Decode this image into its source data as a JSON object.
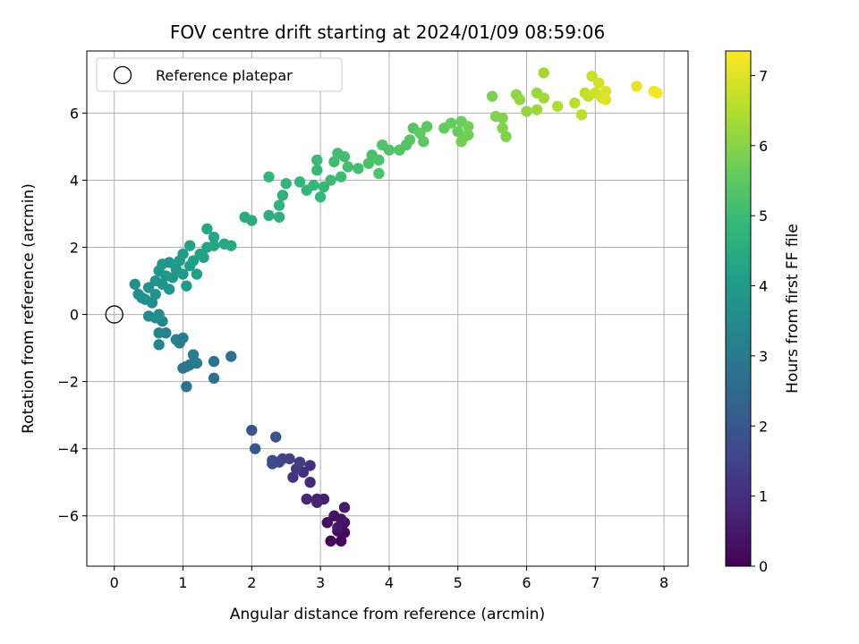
{
  "chart_data": {
    "type": "scatter",
    "title": "FOV centre drift starting at 2024/01/09 08:59:06",
    "xlabel": "Angular distance from reference (arcmin)",
    "ylabel": "Rotation from reference (arcmin)",
    "xlim": [
      -0.4,
      8.35
    ],
    "ylim": [
      -7.5,
      7.85
    ],
    "x_ticks": [
      0,
      1,
      2,
      3,
      4,
      5,
      6,
      7,
      8
    ],
    "y_ticks": [
      -6,
      -4,
      -2,
      0,
      2,
      4,
      6
    ],
    "x_tick_labels": [
      "0",
      "1",
      "2",
      "3",
      "4",
      "5",
      "6",
      "7",
      "8"
    ],
    "y_tick_labels": [
      "−6",
      "−4",
      "−2",
      "0",
      "2",
      "4",
      "6"
    ],
    "grid": true,
    "legend": {
      "placement": "top-left",
      "entries": [
        "Reference platepar"
      ]
    },
    "reference_point": {
      "x": 0,
      "y": 0,
      "label": "Reference platepar"
    },
    "colorbar": {
      "label": "Hours from first FF file",
      "colormap": "viridis",
      "range": [
        0,
        7.35
      ],
      "ticks": [
        0,
        1,
        2,
        3,
        4,
        5,
        6,
        7
      ],
      "tick_labels": [
        "0",
        "1",
        "2",
        "3",
        "4",
        "5",
        "6",
        "7"
      ],
      "colors": [
        "#440154",
        "#482878",
        "#3e4989",
        "#31688e",
        "#26828e",
        "#1f9e89",
        "#35b779",
        "#6ece58",
        "#b5de2b",
        "#fde725"
      ]
    },
    "points": [
      {
        "x": 3.3,
        "y": -6.75,
        "h": 0.05
      },
      {
        "x": 3.15,
        "y": -6.75,
        "h": 0.1
      },
      {
        "x": 3.35,
        "y": -6.5,
        "h": 0.15
      },
      {
        "x": 3.25,
        "y": -6.45,
        "h": 0.2
      },
      {
        "x": 3.35,
        "y": -6.2,
        "h": 0.25
      },
      {
        "x": 3.1,
        "y": -6.2,
        "h": 0.3
      },
      {
        "x": 3.2,
        "y": -6.0,
        "h": 0.35
      },
      {
        "x": 3.3,
        "y": -6.1,
        "h": 0.4
      },
      {
        "x": 3.25,
        "y": -6.35,
        "h": 0.45
      },
      {
        "x": 3.35,
        "y": -5.75,
        "h": 0.55
      },
      {
        "x": 3.05,
        "y": -5.5,
        "h": 0.65
      },
      {
        "x": 2.95,
        "y": -5.5,
        "h": 0.7
      },
      {
        "x": 2.95,
        "y": -5.6,
        "h": 0.75
      },
      {
        "x": 2.8,
        "y": -5.5,
        "h": 0.8
      },
      {
        "x": 2.85,
        "y": -5.0,
        "h": 0.9
      },
      {
        "x": 2.85,
        "y": -4.5,
        "h": 1.0
      },
      {
        "x": 2.75,
        "y": -4.7,
        "h": 1.05
      },
      {
        "x": 2.6,
        "y": -4.85,
        "h": 1.1
      },
      {
        "x": 2.65,
        "y": -4.6,
        "h": 1.2
      },
      {
        "x": 2.7,
        "y": -4.4,
        "h": 1.3
      },
      {
        "x": 2.55,
        "y": -4.3,
        "h": 1.4
      },
      {
        "x": 2.45,
        "y": -4.3,
        "h": 1.5
      },
      {
        "x": 2.4,
        "y": -4.4,
        "h": 1.55
      },
      {
        "x": 2.3,
        "y": -4.35,
        "h": 1.65
      },
      {
        "x": 2.3,
        "y": -4.45,
        "h": 1.7
      },
      {
        "x": 2.35,
        "y": -3.65,
        "h": 1.85
      },
      {
        "x": 2.0,
        "y": -3.45,
        "h": 1.95
      },
      {
        "x": 2.05,
        "y": -4.0,
        "h": 2.0
      },
      {
        "x": 1.7,
        "y": -1.25,
        "h": 2.65
      },
      {
        "x": 1.45,
        "y": -1.9,
        "h": 2.7
      },
      {
        "x": 1.45,
        "y": -1.4,
        "h": 2.75
      },
      {
        "x": 1.05,
        "y": -2.15,
        "h": 2.8
      },
      {
        "x": 1.0,
        "y": -1.6,
        "h": 2.85
      },
      {
        "x": 1.05,
        "y": -1.55,
        "h": 2.9
      },
      {
        "x": 1.1,
        "y": -1.5,
        "h": 2.95
      },
      {
        "x": 1.2,
        "y": -1.45,
        "h": 3.0
      },
      {
        "x": 1.15,
        "y": -1.2,
        "h": 3.05
      },
      {
        "x": 0.95,
        "y": -0.85,
        "h": 3.1
      },
      {
        "x": 1.0,
        "y": -0.7,
        "h": 3.15
      },
      {
        "x": 0.9,
        "y": -0.75,
        "h": 3.2
      },
      {
        "x": 0.75,
        "y": -0.55,
        "h": 3.25
      },
      {
        "x": 0.65,
        "y": -0.9,
        "h": 3.3
      },
      {
        "x": 0.65,
        "y": -0.55,
        "h": 3.35
      },
      {
        "x": 0.7,
        "y": -0.2,
        "h": 3.4
      },
      {
        "x": 0.6,
        "y": -0.1,
        "h": 3.45
      },
      {
        "x": 0.5,
        "y": -0.05,
        "h": 3.5
      },
      {
        "x": 0.65,
        "y": 0.0,
        "h": 3.55
      },
      {
        "x": 0.55,
        "y": 0.35,
        "h": 3.6
      },
      {
        "x": 0.4,
        "y": 0.5,
        "h": 3.6
      },
      {
        "x": 0.3,
        "y": 0.9,
        "h": 3.65
      },
      {
        "x": 0.35,
        "y": 0.6,
        "h": 3.65
      },
      {
        "x": 0.45,
        "y": 0.45,
        "h": 3.7
      },
      {
        "x": 0.5,
        "y": 0.8,
        "h": 3.7
      },
      {
        "x": 0.6,
        "y": 0.6,
        "h": 3.75
      },
      {
        "x": 0.7,
        "y": 0.9,
        "h": 3.75
      },
      {
        "x": 0.6,
        "y": 1.0,
        "h": 3.8
      },
      {
        "x": 0.8,
        "y": 0.75,
        "h": 3.8
      },
      {
        "x": 0.75,
        "y": 1.15,
        "h": 3.85
      },
      {
        "x": 0.65,
        "y": 1.3,
        "h": 3.85
      },
      {
        "x": 0.85,
        "y": 1.1,
        "h": 3.9
      },
      {
        "x": 0.9,
        "y": 1.35,
        "h": 3.9
      },
      {
        "x": 0.7,
        "y": 1.5,
        "h": 3.95
      },
      {
        "x": 0.8,
        "y": 1.55,
        "h": 3.95
      },
      {
        "x": 1.0,
        "y": 1.2,
        "h": 4.0
      },
      {
        "x": 0.95,
        "y": 1.6,
        "h": 4.0
      },
      {
        "x": 1.05,
        "y": 0.85,
        "h": 4.05
      },
      {
        "x": 1.1,
        "y": 1.45,
        "h": 4.05
      },
      {
        "x": 1.0,
        "y": 1.8,
        "h": 4.1
      },
      {
        "x": 1.15,
        "y": 1.6,
        "h": 4.1
      },
      {
        "x": 1.2,
        "y": 1.2,
        "h": 4.15
      },
      {
        "x": 1.25,
        "y": 1.8,
        "h": 4.15
      },
      {
        "x": 1.1,
        "y": 2.05,
        "h": 4.2
      },
      {
        "x": 1.3,
        "y": 1.7,
        "h": 4.2
      },
      {
        "x": 1.35,
        "y": 2.0,
        "h": 4.25
      },
      {
        "x": 1.45,
        "y": 2.05,
        "h": 4.3
      },
      {
        "x": 1.35,
        "y": 2.55,
        "h": 4.35
      },
      {
        "x": 1.45,
        "y": 2.3,
        "h": 4.35
      },
      {
        "x": 1.6,
        "y": 2.1,
        "h": 4.4
      },
      {
        "x": 1.7,
        "y": 2.05,
        "h": 4.45
      },
      {
        "x": 1.9,
        "y": 2.9,
        "h": 4.5
      },
      {
        "x": 2.0,
        "y": 2.8,
        "h": 4.55
      },
      {
        "x": 2.25,
        "y": 2.95,
        "h": 4.6
      },
      {
        "x": 2.4,
        "y": 2.9,
        "h": 4.65
      },
      {
        "x": 2.4,
        "y": 3.25,
        "h": 4.7
      },
      {
        "x": 2.45,
        "y": 3.55,
        "h": 4.75
      },
      {
        "x": 2.25,
        "y": 4.1,
        "h": 4.8
      },
      {
        "x": 2.5,
        "y": 3.9,
        "h": 4.8
      },
      {
        "x": 2.7,
        "y": 3.95,
        "h": 4.85
      },
      {
        "x": 2.8,
        "y": 3.7,
        "h": 4.85
      },
      {
        "x": 2.9,
        "y": 3.85,
        "h": 4.9
      },
      {
        "x": 3.0,
        "y": 3.5,
        "h": 4.9
      },
      {
        "x": 3.05,
        "y": 3.8,
        "h": 4.95
      },
      {
        "x": 2.95,
        "y": 4.3,
        "h": 4.95
      },
      {
        "x": 2.95,
        "y": 4.6,
        "h": 5.0
      },
      {
        "x": 3.15,
        "y": 4.0,
        "h": 5.0
      },
      {
        "x": 3.2,
        "y": 4.55,
        "h": 5.05
      },
      {
        "x": 3.3,
        "y": 4.1,
        "h": 5.05
      },
      {
        "x": 3.35,
        "y": 4.7,
        "h": 5.1
      },
      {
        "x": 3.25,
        "y": 4.8,
        "h": 5.1
      },
      {
        "x": 3.4,
        "y": 4.4,
        "h": 5.15
      },
      {
        "x": 3.55,
        "y": 4.35,
        "h": 5.15
      },
      {
        "x": 3.7,
        "y": 4.5,
        "h": 5.2
      },
      {
        "x": 3.75,
        "y": 4.75,
        "h": 5.2
      },
      {
        "x": 3.85,
        "y": 4.2,
        "h": 5.25
      },
      {
        "x": 3.85,
        "y": 4.6,
        "h": 5.25
      },
      {
        "x": 3.9,
        "y": 5.05,
        "h": 5.3
      },
      {
        "x": 4.0,
        "y": 4.9,
        "h": 5.3
      },
      {
        "x": 4.15,
        "y": 4.9,
        "h": 5.35
      },
      {
        "x": 4.25,
        "y": 5.05,
        "h": 5.35
      },
      {
        "x": 4.3,
        "y": 5.2,
        "h": 5.4
      },
      {
        "x": 4.35,
        "y": 5.55,
        "h": 5.4
      },
      {
        "x": 4.5,
        "y": 5.15,
        "h": 5.45
      },
      {
        "x": 4.55,
        "y": 5.6,
        "h": 5.45
      },
      {
        "x": 4.45,
        "y": 5.4,
        "h": 5.5
      },
      {
        "x": 4.8,
        "y": 5.55,
        "h": 5.55
      },
      {
        "x": 4.9,
        "y": 5.7,
        "h": 5.6
      },
      {
        "x": 5.0,
        "y": 5.45,
        "h": 5.6
      },
      {
        "x": 5.05,
        "y": 5.75,
        "h": 5.65
      },
      {
        "x": 5.1,
        "y": 5.3,
        "h": 5.7
      },
      {
        "x": 5.15,
        "y": 5.35,
        "h": 5.7
      },
      {
        "x": 5.05,
        "y": 5.15,
        "h": 5.75
      },
      {
        "x": 5.15,
        "y": 5.6,
        "h": 5.75
      },
      {
        "x": 5.5,
        "y": 6.5,
        "h": 5.85
      },
      {
        "x": 5.55,
        "y": 5.9,
        "h": 5.9
      },
      {
        "x": 5.65,
        "y": 5.85,
        "h": 5.9
      },
      {
        "x": 5.65,
        "y": 5.55,
        "h": 5.95
      },
      {
        "x": 5.7,
        "y": 5.3,
        "h": 5.95
      },
      {
        "x": 5.85,
        "y": 6.55,
        "h": 6.05
      },
      {
        "x": 5.9,
        "y": 6.4,
        "h": 6.1
      },
      {
        "x": 6.0,
        "y": 6.05,
        "h": 6.15
      },
      {
        "x": 6.15,
        "y": 6.6,
        "h": 6.2
      },
      {
        "x": 6.15,
        "y": 6.1,
        "h": 6.25
      },
      {
        "x": 6.25,
        "y": 6.45,
        "h": 6.3
      },
      {
        "x": 6.25,
        "y": 7.2,
        "h": 6.35
      },
      {
        "x": 6.45,
        "y": 6.2,
        "h": 6.45
      },
      {
        "x": 6.7,
        "y": 6.3,
        "h": 6.55
      },
      {
        "x": 6.8,
        "y": 5.95,
        "h": 6.6
      },
      {
        "x": 6.85,
        "y": 6.6,
        "h": 6.65
      },
      {
        "x": 6.9,
        "y": 6.5,
        "h": 6.7
      },
      {
        "x": 6.95,
        "y": 7.1,
        "h": 6.75
      },
      {
        "x": 7.0,
        "y": 6.6,
        "h": 6.8
      },
      {
        "x": 7.05,
        "y": 6.9,
        "h": 6.85
      },
      {
        "x": 7.1,
        "y": 6.45,
        "h": 6.9
      },
      {
        "x": 7.15,
        "y": 6.65,
        "h": 6.95
      },
      {
        "x": 7.15,
        "y": 6.4,
        "h": 7.0
      },
      {
        "x": 7.6,
        "y": 6.8,
        "h": 7.1
      },
      {
        "x": 7.85,
        "y": 6.65,
        "h": 7.2
      },
      {
        "x": 7.9,
        "y": 6.6,
        "h": 7.25
      }
    ]
  }
}
